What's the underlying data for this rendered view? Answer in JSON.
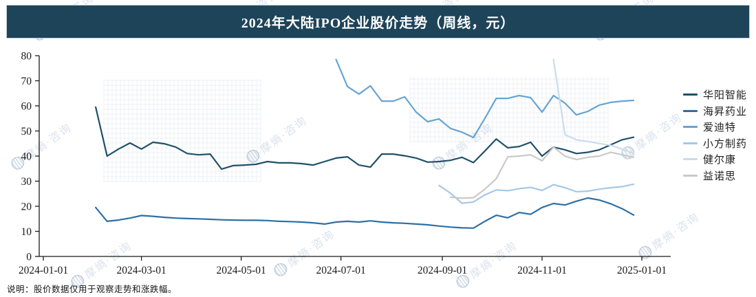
{
  "title": "2024年大陆IPO企业股价走势（周线，元）",
  "footnote": "说明：股价数据仅用于观察走势和涨跌幅。",
  "watermark": {
    "text": "摩熵·咨询"
  },
  "theme": {
    "title_bar_bg": "#1e4459",
    "title_color": "#ffffff",
    "axis_color": "#1a1a1a",
    "tick_label_color": "#1a1a1a"
  },
  "chart_data": {
    "type": "line",
    "title": "2024年大陆IPO企业股价走势（周线，元）",
    "xlabel": "",
    "ylabel": "",
    "grid": false,
    "legend_position": "right",
    "x_axis": {
      "tick_labels": [
        "2024-01-01",
        "2024-03-01",
        "2024-05-01",
        "2024-07-01",
        "2024-09-01",
        "2024-11-01",
        "2025-01-01"
      ]
    },
    "y_axis": {
      "min": 0,
      "max": 80,
      "tick_step": 10,
      "ticks": [
        0,
        10,
        20,
        30,
        40,
        50,
        60,
        70,
        80
      ]
    },
    "week_dates": [
      "2024-02-02",
      "2024-02-09",
      "2024-02-16",
      "2024-02-23",
      "2024-03-01",
      "2024-03-08",
      "2024-03-15",
      "2024-03-22",
      "2024-03-29",
      "2024-04-05",
      "2024-04-12",
      "2024-04-19",
      "2024-04-26",
      "2024-05-03",
      "2024-05-10",
      "2024-05-17",
      "2024-05-24",
      "2024-05-31",
      "2024-06-07",
      "2024-06-14",
      "2024-06-21",
      "2024-06-28",
      "2024-07-05",
      "2024-07-12",
      "2024-07-19",
      "2024-07-26",
      "2024-08-02",
      "2024-08-09",
      "2024-08-16",
      "2024-08-23",
      "2024-08-30",
      "2024-09-06",
      "2024-09-13",
      "2024-09-20",
      "2024-09-27",
      "2024-10-04",
      "2024-10-11",
      "2024-10-18",
      "2024-10-25",
      "2024-11-01",
      "2024-11-08",
      "2024-11-15",
      "2024-11-22",
      "2024-11-29",
      "2024-12-06",
      "2024-12-13",
      "2024-12-20",
      "2024-12-27"
    ],
    "series": [
      {
        "name": "华阳智能",
        "color": "#1e5069",
        "start_week": 0,
        "values": [
          59.5,
          40.0,
          42.8,
          45.2,
          42.8,
          45.5,
          44.9,
          43.6,
          41.0,
          40.5,
          40.8,
          34.8,
          36.2,
          36.4,
          36.7,
          37.8,
          37.3,
          37.3,
          37.0,
          36.4,
          37.8,
          39.2,
          39.7,
          36.4,
          35.6,
          40.8,
          40.8,
          40.1,
          39.2,
          37.6,
          37.8,
          38.3,
          39.5,
          37.4,
          42.0,
          46.8,
          43.3,
          43.8,
          45.5,
          40.0,
          43.6,
          42.5,
          41.0,
          41.5,
          42.5,
          44.5,
          46.5,
          47.5
        ]
      },
      {
        "name": "海昇药业",
        "color": "#2d6fa3",
        "start_week": 0,
        "values": [
          19.5,
          14.0,
          14.5,
          15.3,
          16.3,
          16.0,
          15.6,
          15.3,
          15.1,
          15.0,
          14.8,
          14.6,
          14.5,
          14.4,
          14.4,
          14.3,
          14.0,
          13.9,
          13.7,
          13.4,
          12.9,
          13.7,
          14.0,
          13.7,
          14.2,
          13.7,
          13.4,
          13.2,
          12.9,
          12.6,
          12.1,
          11.7,
          11.4,
          11.3,
          14.0,
          16.4,
          15.4,
          17.5,
          16.8,
          19.5,
          21.1,
          20.5,
          22.0,
          23.3,
          22.5,
          21.0,
          19.0,
          16.5
        ]
      },
      {
        "name": "爱迪特",
        "color": "#66a3d2",
        "start_week": 21,
        "values": [
          78.5,
          67.7,
          64.7,
          68.0,
          61.9,
          61.9,
          63.6,
          57.5,
          53.7,
          54.8,
          51.0,
          49.5,
          47.4,
          55.0,
          63.0,
          63.0,
          64.1,
          63.3,
          57.5,
          64.1,
          61.1,
          56.4,
          57.8,
          60.3,
          61.4,
          61.9,
          62.2
        ]
      },
      {
        "name": "小方制药",
        "color": "#a5c8e6",
        "start_week": 30,
        "values": [
          28.3,
          25.2,
          21.2,
          21.7,
          24.5,
          26.5,
          26.2,
          27.0,
          27.5,
          26.3,
          28.6,
          27.4,
          25.8,
          26.0,
          26.8,
          27.4,
          27.8,
          28.8
        ]
      },
      {
        "name": "健尔康",
        "color": "#c9dcef",
        "start_week": 40,
        "values": [
          78.5,
          48.5,
          46.5,
          45.8,
          45.0,
          44.3,
          42.8,
          41.0
        ]
      },
      {
        "name": "益诺思",
        "color": "#c9c9c9",
        "start_week": 31,
        "values": [
          23.6,
          23.2,
          23.4,
          26.8,
          31.0,
          39.7,
          40.0,
          40.5,
          38.1,
          43.6,
          40.0,
          38.6,
          39.5,
          40.0,
          41.5,
          40.5,
          39.5
        ]
      }
    ]
  }
}
